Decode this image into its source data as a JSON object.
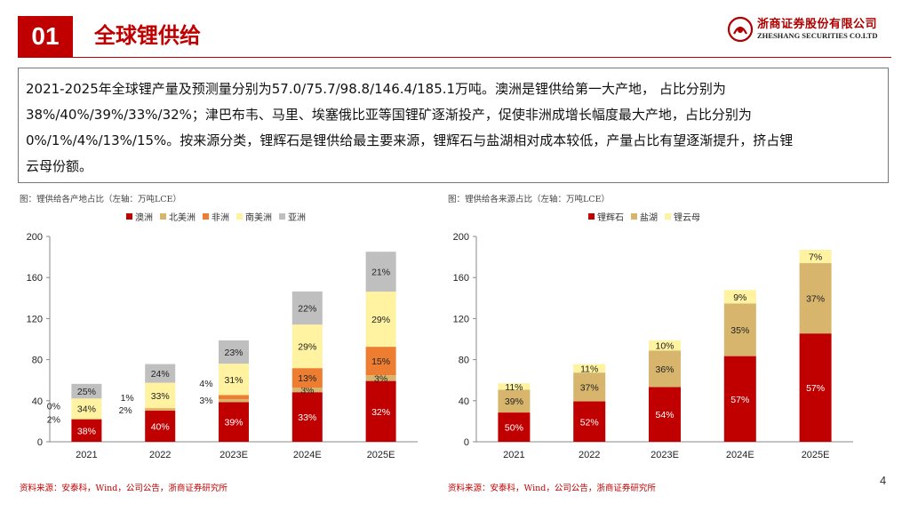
{
  "header": {
    "section_number": "01",
    "title": "全球锂供给",
    "logo_cn": "浙商证券股份有限公司",
    "logo_en": "ZHESHANG SECURITIES CO.LTD"
  },
  "summary": {
    "line1": "2021-2025年全球锂产量及预测量分别为57.0/75.7/98.8/146.4/185.1万吨。澳洲是锂供给第一大产地，  占比分别为",
    "line2": "38%/40%/39%/33%/32%；津巴布韦、马里、埃塞俄比亚等国锂矿逐渐投产，促使非洲成增长幅度最大产地，占比分别为",
    "line3": "0%/1%/4%/13%/15%。按来源分类，锂辉石是锂供给最主要来源，锂辉石与盐湖相对成本较低，产量占比有望逐渐提升，挤占锂",
    "line4": "云母份额。"
  },
  "chart_left": {
    "caption": "图：锂供给各产地占比（左轴：万吨LCE）",
    "source": "资料来源：安泰科，Wind，公司公告，浙商证券研究所"
  },
  "chart_right": {
    "caption": "图：锂供给各来源占比（左轴：万吨LCE）",
    "source": "资料来源：安泰科，Wind，公司公告，浙商证券研究所"
  },
  "page_number": "4",
  "chart_data": [
    {
      "type": "bar",
      "stacked": true,
      "categories": [
        "2021",
        "2022",
        "2023E",
        "2024E",
        "2025E"
      ],
      "totals": [
        57.0,
        75.7,
        98.8,
        146.4,
        185.1
      ],
      "ylim": [
        0,
        200
      ],
      "yticks": [
        0,
        40,
        80,
        120,
        160,
        200
      ],
      "legend_position": "top",
      "series": [
        {
          "name": "澳洲",
          "color": "#c00000",
          "shares": [
            38,
            40,
            39,
            33,
            32
          ],
          "labels": [
            "38%",
            "40%",
            "39%",
            "33%",
            "32%"
          ],
          "label_color": "#ffffff"
        },
        {
          "name": "北美洲",
          "color": "#d7b56d",
          "shares": [
            2,
            2,
            3,
            3,
            3
          ],
          "labels": [
            "2%",
            "2%",
            "3%",
            "3%",
            "3%"
          ],
          "label_color": "#222222"
        },
        {
          "name": "非洲",
          "color": "#ed7d31",
          "shares": [
            0,
            1,
            4,
            13,
            15
          ],
          "labels": [
            "0%",
            "1%",
            "4%",
            "13%",
            "15%"
          ],
          "label_color": "#222222"
        },
        {
          "name": "南美洲",
          "color": "#fff2a0",
          "shares": [
            34,
            33,
            31,
            29,
            29
          ],
          "labels": [
            "34%",
            "33%",
            "31%",
            "29%",
            "29%"
          ],
          "label_color": "#222222"
        },
        {
          "name": "亚洲",
          "color": "#bfbfbf",
          "shares": [
            25,
            24,
            23,
            22,
            21
          ],
          "labels": [
            "25%",
            "24%",
            "23%",
            "22%",
            "21%"
          ],
          "label_color": "#222222"
        }
      ]
    },
    {
      "type": "bar",
      "stacked": true,
      "categories": [
        "2021",
        "2022",
        "2023E",
        "2024E",
        "2025E"
      ],
      "totals": [
        57.0,
        75.7,
        98.8,
        146.4,
        185.1
      ],
      "ylim": [
        0,
        200
      ],
      "yticks": [
        0,
        40,
        80,
        120,
        160,
        200
      ],
      "legend_position": "top",
      "series": [
        {
          "name": "锂辉石",
          "color": "#c00000",
          "shares": [
            50,
            52,
            54,
            57,
            57
          ],
          "labels": [
            "50%",
            "52%",
            "54%",
            "57%",
            "57%"
          ],
          "label_color": "#ffffff"
        },
        {
          "name": "盐湖",
          "color": "#d7b56d",
          "shares": [
            39,
            37,
            36,
            35,
            37
          ],
          "labels": [
            "39%",
            "37%",
            "36%",
            "35%",
            "37%"
          ],
          "label_color": "#222222"
        },
        {
          "name": "锂云母",
          "color": "#fff2a0",
          "shares": [
            11,
            11,
            10,
            9,
            7
          ],
          "labels": [
            "11%",
            "11%",
            "10%",
            "9%",
            "7%"
          ],
          "label_color": "#222222"
        }
      ]
    }
  ]
}
